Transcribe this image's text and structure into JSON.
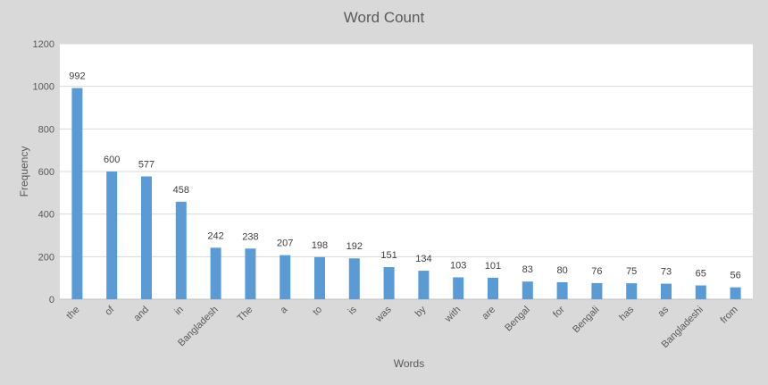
{
  "chart_data": {
    "type": "bar",
    "title": "Word Count",
    "xlabel": "Words",
    "ylabel": "Frequency",
    "ylim": [
      0,
      1200
    ],
    "yticks": [
      0,
      200,
      400,
      600,
      800,
      1000,
      1200
    ],
    "grid": true,
    "legend": "none",
    "bar_color": "#5b9bd5",
    "categories": [
      "the",
      "of",
      "and",
      "in",
      "Bangladesh",
      "The",
      "a",
      "to",
      "is",
      "was",
      "by",
      "with",
      "are",
      "Bengal",
      "for",
      "Bengali",
      "has",
      "as",
      "Bangladeshi",
      "from"
    ],
    "values": [
      992,
      600,
      577,
      458,
      242,
      238,
      207,
      198,
      192,
      151,
      134,
      103,
      101,
      83,
      80,
      76,
      75,
      73,
      65,
      56
    ]
  }
}
